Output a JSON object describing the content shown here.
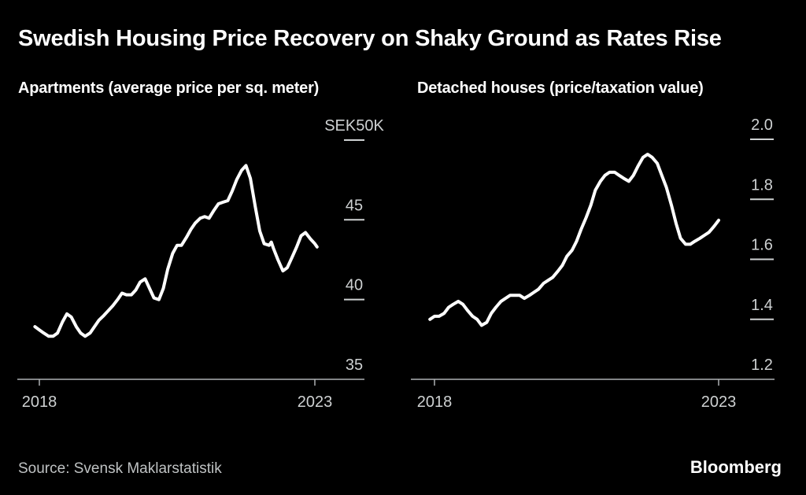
{
  "header": {
    "title": "Swedish Housing Price Recovery on Shaky Ground as Rates Rise"
  },
  "footer": {
    "source": "Source: Svensk Maklarstatistik",
    "brand": "Bloomberg"
  },
  "colors": {
    "background": "#000000",
    "line": "#ffffff",
    "title": "#ffffff",
    "tick_label": "#ced1d2",
    "axis_line": "#aeb1b2",
    "source_text": "#bfc2c3"
  },
  "chart_data": [
    {
      "type": "line",
      "title": "Apartments (average price per sq. meter)",
      "x_ticks": [
        {
          "value": 2018,
          "label": "2018"
        },
        {
          "value": 2023,
          "label": "2023"
        }
      ],
      "y_ticks": [
        {
          "value": 50,
          "label": "SEK50K"
        },
        {
          "value": 45,
          "label": "45"
        },
        {
          "value": 40,
          "label": "40"
        },
        {
          "value": 35,
          "label": "35"
        }
      ],
      "xlim": [
        2017.9,
        2023.1
      ],
      "ylim": [
        35,
        50.5
      ],
      "legend": "none",
      "grid": false,
      "points": [
        [
          2017.92,
          38.3
        ],
        [
          2018.0,
          38.1
        ],
        [
          2018.08,
          37.9
        ],
        [
          2018.17,
          37.7
        ],
        [
          2018.25,
          37.7
        ],
        [
          2018.33,
          37.9
        ],
        [
          2018.42,
          38.6
        ],
        [
          2018.5,
          39.1
        ],
        [
          2018.58,
          38.9
        ],
        [
          2018.67,
          38.3
        ],
        [
          2018.75,
          37.9
        ],
        [
          2018.83,
          37.7
        ],
        [
          2018.92,
          37.9
        ],
        [
          2019.0,
          38.3
        ],
        [
          2019.08,
          38.7
        ],
        [
          2019.17,
          39.0
        ],
        [
          2019.25,
          39.3
        ],
        [
          2019.33,
          39.6
        ],
        [
          2019.42,
          40.0
        ],
        [
          2019.5,
          40.4
        ],
        [
          2019.58,
          40.3
        ],
        [
          2019.67,
          40.3
        ],
        [
          2019.75,
          40.6
        ],
        [
          2019.83,
          41.1
        ],
        [
          2019.92,
          41.3
        ],
        [
          2020.0,
          40.7
        ],
        [
          2020.08,
          40.1
        ],
        [
          2020.17,
          40.0
        ],
        [
          2020.25,
          40.7
        ],
        [
          2020.33,
          41.9
        ],
        [
          2020.42,
          42.9
        ],
        [
          2020.5,
          43.4
        ],
        [
          2020.58,
          43.4
        ],
        [
          2020.67,
          43.9
        ],
        [
          2020.75,
          44.4
        ],
        [
          2020.83,
          44.8
        ],
        [
          2020.92,
          45.1
        ],
        [
          2021.0,
          45.2
        ],
        [
          2021.08,
          45.1
        ],
        [
          2021.17,
          45.6
        ],
        [
          2021.25,
          46.0
        ],
        [
          2021.33,
          46.1
        ],
        [
          2021.42,
          46.2
        ],
        [
          2021.5,
          46.8
        ],
        [
          2021.58,
          47.5
        ],
        [
          2021.67,
          48.1
        ],
        [
          2021.75,
          48.4
        ],
        [
          2021.83,
          47.6
        ],
        [
          2021.92,
          45.8
        ],
        [
          2022.0,
          44.3
        ],
        [
          2022.08,
          43.5
        ],
        [
          2022.17,
          43.4
        ],
        [
          2022.21,
          43.6
        ],
        [
          2022.25,
          43.2
        ],
        [
          2022.33,
          42.5
        ],
        [
          2022.42,
          41.8
        ],
        [
          2022.5,
          42.0
        ],
        [
          2022.58,
          42.6
        ],
        [
          2022.67,
          43.3
        ],
        [
          2022.75,
          44.0
        ],
        [
          2022.83,
          44.2
        ],
        [
          2022.92,
          43.8
        ],
        [
          2023.0,
          43.5
        ],
        [
          2023.04,
          43.3
        ]
      ]
    },
    {
      "type": "line",
      "title": "Detached houses (price/taxation value)",
      "x_ticks": [
        {
          "value": 2018,
          "label": "2018"
        },
        {
          "value": 2023,
          "label": "2023"
        }
      ],
      "y_ticks": [
        {
          "value": 2.0,
          "label": "2.0"
        },
        {
          "value": 1.8,
          "label": "1.8"
        },
        {
          "value": 1.6,
          "label": "1.6"
        },
        {
          "value": 1.4,
          "label": "1.4"
        },
        {
          "value": 1.2,
          "label": "1.2"
        }
      ],
      "xlim": [
        2017.9,
        2023.0
      ],
      "ylim": [
        1.2,
        2.05
      ],
      "legend": "none",
      "grid": false,
      "points": [
        [
          2017.92,
          1.4
        ],
        [
          2018.0,
          1.41
        ],
        [
          2018.08,
          1.41
        ],
        [
          2018.17,
          1.42
        ],
        [
          2018.25,
          1.44
        ],
        [
          2018.33,
          1.45
        ],
        [
          2018.42,
          1.46
        ],
        [
          2018.5,
          1.45
        ],
        [
          2018.58,
          1.43
        ],
        [
          2018.67,
          1.41
        ],
        [
          2018.75,
          1.4
        ],
        [
          2018.83,
          1.38
        ],
        [
          2018.92,
          1.39
        ],
        [
          2019.0,
          1.42
        ],
        [
          2019.08,
          1.44
        ],
        [
          2019.17,
          1.46
        ],
        [
          2019.25,
          1.47
        ],
        [
          2019.33,
          1.48
        ],
        [
          2019.42,
          1.48
        ],
        [
          2019.5,
          1.48
        ],
        [
          2019.58,
          1.47
        ],
        [
          2019.67,
          1.48
        ],
        [
          2019.75,
          1.49
        ],
        [
          2019.83,
          1.5
        ],
        [
          2019.92,
          1.52
        ],
        [
          2020.0,
          1.53
        ],
        [
          2020.08,
          1.54
        ],
        [
          2020.17,
          1.56
        ],
        [
          2020.25,
          1.58
        ],
        [
          2020.33,
          1.61
        ],
        [
          2020.42,
          1.63
        ],
        [
          2020.5,
          1.66
        ],
        [
          2020.58,
          1.7
        ],
        [
          2020.67,
          1.74
        ],
        [
          2020.75,
          1.78
        ],
        [
          2020.83,
          1.83
        ],
        [
          2020.92,
          1.86
        ],
        [
          2021.0,
          1.88
        ],
        [
          2021.08,
          1.89
        ],
        [
          2021.17,
          1.89
        ],
        [
          2021.25,
          1.88
        ],
        [
          2021.33,
          1.87
        ],
        [
          2021.42,
          1.86
        ],
        [
          2021.5,
          1.88
        ],
        [
          2021.58,
          1.91
        ],
        [
          2021.67,
          1.94
        ],
        [
          2021.75,
          1.95
        ],
        [
          2021.83,
          1.94
        ],
        [
          2021.92,
          1.92
        ],
        [
          2022.0,
          1.88
        ],
        [
          2022.08,
          1.84
        ],
        [
          2022.17,
          1.78
        ],
        [
          2022.25,
          1.72
        ],
        [
          2022.33,
          1.67
        ],
        [
          2022.42,
          1.65
        ],
        [
          2022.5,
          1.65
        ],
        [
          2022.58,
          1.66
        ],
        [
          2022.67,
          1.67
        ],
        [
          2022.75,
          1.68
        ],
        [
          2022.83,
          1.69
        ],
        [
          2022.92,
          1.71
        ],
        [
          2023.0,
          1.73
        ]
      ]
    }
  ]
}
